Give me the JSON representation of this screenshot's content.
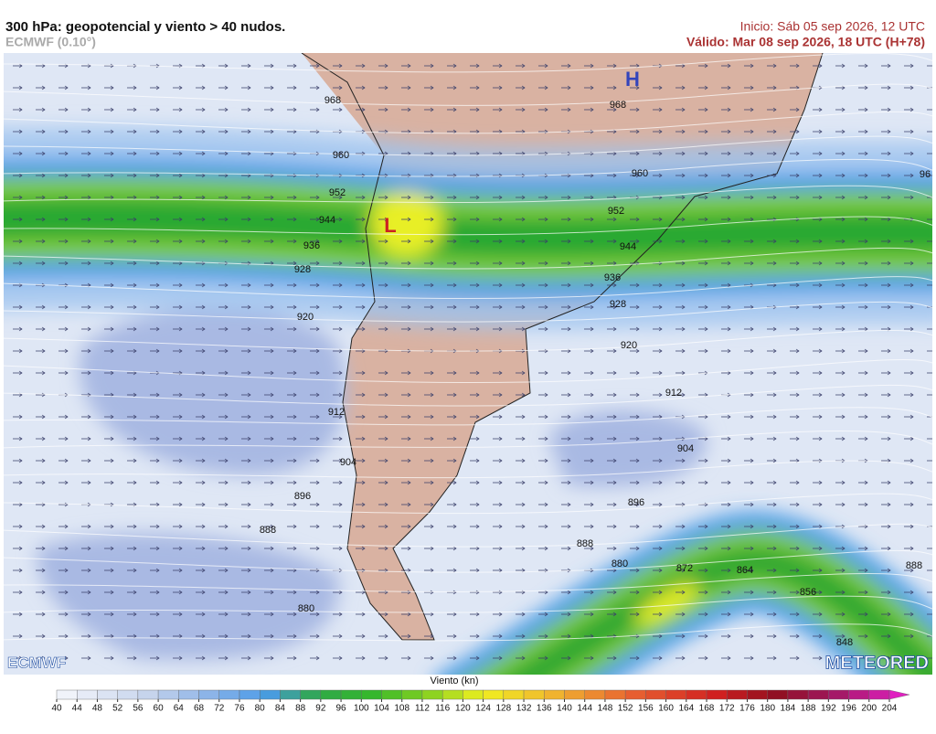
{
  "header": {
    "title": "300 hPa: geopotencial y viento > 40 nudos.",
    "model": "ECMWF (0.10°)",
    "init": "Inicio: Sáb 05 sep 2026, 12 UTC",
    "valid": "Válido: Mar 08 sep 2026, 18 UTC (H+78)"
  },
  "map": {
    "pressure_centers": [
      {
        "label": "H"
      },
      {
        "label": "L"
      }
    ],
    "contour_labels": [
      968,
      968,
      960,
      960,
      952,
      952,
      944,
      944,
      936,
      936,
      928,
      928,
      920,
      920,
      912,
      912,
      904,
      904,
      896,
      896,
      888,
      888,
      880,
      880,
      872,
      864,
      856,
      848,
      888,
      96
    ]
  },
  "legend": {
    "title": "Viento (kn)",
    "ticks": [
      40,
      44,
      48,
      52,
      56,
      60,
      64,
      68,
      72,
      76,
      80,
      84,
      88,
      92,
      96,
      100,
      104,
      108,
      112,
      116,
      120,
      124,
      128,
      132,
      136,
      140,
      144,
      148,
      152,
      156,
      160,
      164,
      168,
      172,
      176,
      180,
      184,
      188,
      192,
      196,
      200,
      204
    ]
  },
  "logos": {
    "left": "ECMWF",
    "right": "METEORED"
  }
}
